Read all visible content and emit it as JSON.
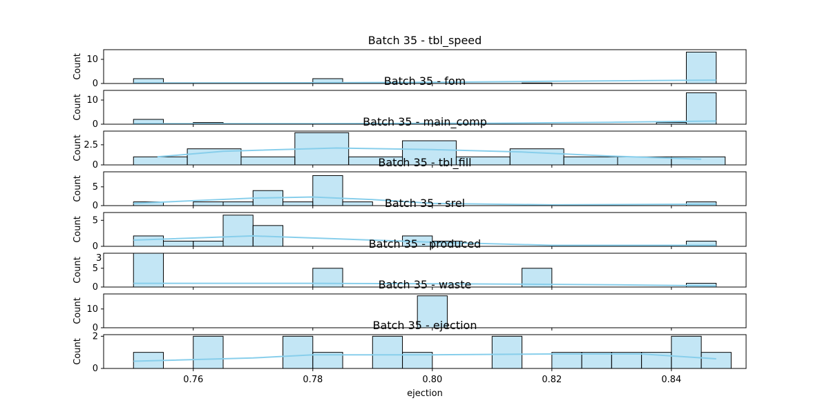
{
  "chart_data": [
    {
      "type": "bar",
      "title": "Batch 35 - tbl_speed",
      "ylabel": "Count",
      "ylim": [
        0,
        14
      ],
      "yticks": [
        0,
        10
      ],
      "bins": [
        [
          0.75,
          0.755,
          2
        ],
        [
          0.78,
          0.785,
          2
        ],
        [
          0.815,
          0.82,
          0.2
        ],
        [
          0.8425,
          0.8475,
          13
        ]
      ],
      "kde": [
        [
          0.75,
          0.2
        ],
        [
          0.78,
          0.3
        ],
        [
          0.8,
          0.5
        ],
        [
          0.82,
          0.9
        ],
        [
          0.8475,
          1.4
        ]
      ]
    },
    {
      "type": "bar",
      "title": "Batch 35 - fom",
      "ylabel": "Count",
      "ylim": [
        0,
        14
      ],
      "yticks": [
        0,
        10
      ],
      "bins": [
        [
          0.75,
          0.755,
          2
        ],
        [
          0.76,
          0.765,
          0.7
        ],
        [
          0.8375,
          0.8425,
          0.7
        ],
        [
          0.8425,
          0.8475,
          13
        ]
      ],
      "kde": [
        [
          0.75,
          0.2
        ],
        [
          0.78,
          0.2
        ],
        [
          0.81,
          0.4
        ],
        [
          0.83,
          0.8
        ],
        [
          0.8475,
          1.3
        ]
      ]
    },
    {
      "type": "bar",
      "title": "Batch 35 - main_comp",
      "ylabel": "Count",
      "ylim": [
        0,
        4.2
      ],
      "yticks": [
        0,
        2.5
      ],
      "bins": [
        [
          0.75,
          0.759,
          1
        ],
        [
          0.759,
          0.768,
          2
        ],
        [
          0.768,
          0.777,
          1
        ],
        [
          0.777,
          0.786,
          4
        ],
        [
          0.786,
          0.795,
          1
        ],
        [
          0.795,
          0.804,
          3
        ],
        [
          0.804,
          0.813,
          1
        ],
        [
          0.813,
          0.822,
          2
        ],
        [
          0.822,
          0.831,
          1
        ],
        [
          0.831,
          0.84,
          1
        ],
        [
          0.84,
          0.849,
          1
        ]
      ],
      "kde": [
        [
          0.754,
          1.0
        ],
        [
          0.765,
          1.7
        ],
        [
          0.784,
          2.1
        ],
        [
          0.8,
          1.9
        ],
        [
          0.815,
          1.6
        ],
        [
          0.83,
          1.1
        ],
        [
          0.845,
          0.7
        ]
      ]
    },
    {
      "type": "bar",
      "title": "Batch 35 - tbl_fill",
      "ylabel": "Count",
      "ylim": [
        0,
        9
      ],
      "yticks": [
        0,
        5
      ],
      "bins": [
        [
          0.75,
          0.755,
          1
        ],
        [
          0.76,
          0.765,
          1
        ],
        [
          0.765,
          0.77,
          1
        ],
        [
          0.77,
          0.775,
          4
        ],
        [
          0.775,
          0.78,
          1
        ],
        [
          0.78,
          0.785,
          8
        ],
        [
          0.785,
          0.79,
          1
        ],
        [
          0.8425,
          0.8475,
          1
        ]
      ],
      "kde": [
        [
          0.75,
          0.6
        ],
        [
          0.77,
          2.0
        ],
        [
          0.78,
          2.3
        ],
        [
          0.79,
          1.6
        ],
        [
          0.8,
          0.6
        ],
        [
          0.82,
          0.2
        ],
        [
          0.8475,
          0.4
        ]
      ]
    },
    {
      "type": "bar",
      "title": "Batch 35 - srel",
      "ylabel": "Count",
      "ylim": [
        0,
        6.5
      ],
      "yticks": [
        0,
        5
      ],
      "bins": [
        [
          0.75,
          0.755,
          2
        ],
        [
          0.755,
          0.76,
          1
        ],
        [
          0.76,
          0.765,
          1
        ],
        [
          0.765,
          0.77,
          6
        ],
        [
          0.77,
          0.775,
          4
        ],
        [
          0.795,
          0.8,
          2
        ],
        [
          0.8,
          0.805,
          1
        ],
        [
          0.8425,
          0.8475,
          1
        ]
      ],
      "kde": [
        [
          0.75,
          1.2
        ],
        [
          0.77,
          2.0
        ],
        [
          0.79,
          1.2
        ],
        [
          0.8,
          0.8
        ],
        [
          0.82,
          0.2
        ],
        [
          0.8475,
          0.2
        ]
      ]
    },
    {
      "type": "bar",
      "title": "Batch 35 - produced",
      "ylabel": "Count",
      "ylim": [
        0,
        9
      ],
      "yticks": [
        0,
        5
      ],
      "bins": [
        [
          0.75,
          0.755,
          9
        ],
        [
          0.78,
          0.785,
          5
        ],
        [
          0.815,
          0.82,
          5
        ],
        [
          0.8425,
          0.8475,
          1
        ]
      ],
      "kde": [
        [
          0.75,
          1.0
        ],
        [
          0.78,
          1.0
        ],
        [
          0.81,
          0.8
        ],
        [
          0.83,
          0.6
        ],
        [
          0.8475,
          0.3
        ]
      ]
    },
    {
      "type": "bar",
      "title": "Batch 35 - waste",
      "ylabel": "Count",
      "ylim": [
        0,
        18
      ],
      "yticks": [
        0,
        10
      ],
      "bins": [
        [
          0.7975,
          0.8025,
          17
        ]
      ],
      "kde": []
    },
    {
      "type": "bar",
      "title": "Batch 35 - ejection",
      "xlabel": "ejection",
      "ylabel": "Count",
      "xlim": [
        0.745,
        0.8525
      ],
      "xticks": [
        "0.76",
        "0.78",
        "0.80",
        "0.82",
        "0.84"
      ],
      "ylim": [
        0,
        2.1
      ],
      "yticks": [
        0,
        2
      ],
      "bins": [
        [
          0.75,
          0.755,
          1
        ],
        [
          0.76,
          0.765,
          2
        ],
        [
          0.775,
          0.78,
          2
        ],
        [
          0.78,
          0.785,
          1
        ],
        [
          0.79,
          0.795,
          2
        ],
        [
          0.795,
          0.8,
          1
        ],
        [
          0.81,
          0.815,
          2
        ],
        [
          0.82,
          0.825,
          1
        ],
        [
          0.825,
          0.83,
          1
        ],
        [
          0.83,
          0.835,
          1
        ],
        [
          0.835,
          0.84,
          1
        ],
        [
          0.84,
          0.845,
          2
        ],
        [
          0.845,
          0.85,
          1
        ]
      ],
      "kde": [
        [
          0.75,
          0.45
        ],
        [
          0.77,
          0.65
        ],
        [
          0.78,
          0.85
        ],
        [
          0.8,
          0.85
        ],
        [
          0.82,
          0.9
        ],
        [
          0.835,
          0.9
        ],
        [
          0.8475,
          0.6
        ]
      ]
    }
  ],
  "stray_label": "3"
}
